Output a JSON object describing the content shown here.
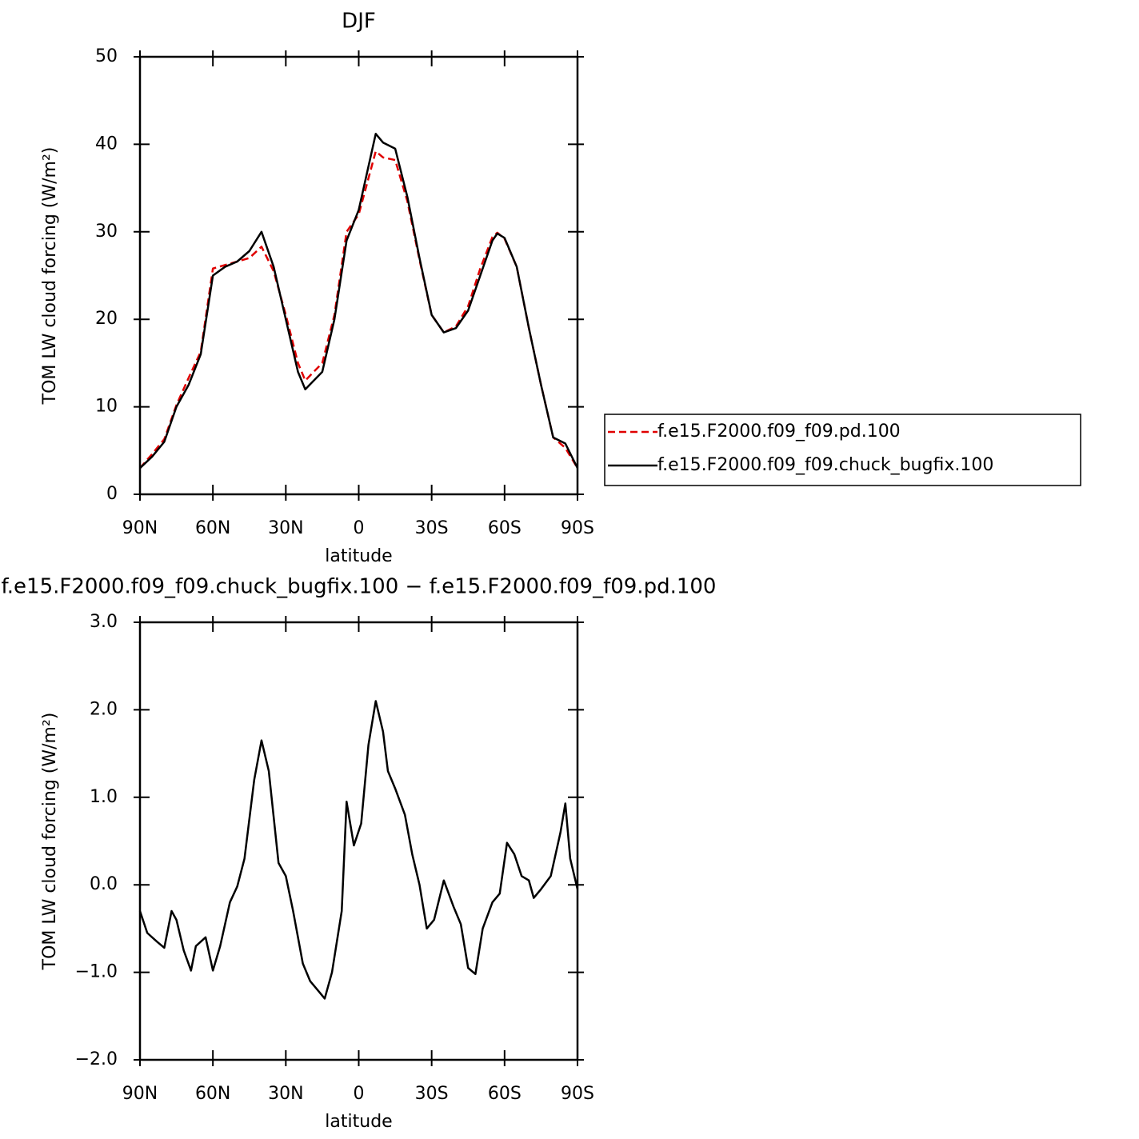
{
  "chart_data": [
    {
      "type": "line",
      "title": "DJF",
      "xlabel": "latitude",
      "ylabel": "TOM LW cloud forcing (W/m²)",
      "x": [
        90,
        85,
        80,
        75,
        70,
        65,
        60,
        55,
        50,
        45,
        40,
        35,
        30,
        25,
        22,
        15,
        10,
        5,
        0,
        -7,
        -10,
        -15,
        -20,
        -25,
        -30,
        -35,
        -40,
        -45,
        -50,
        -55,
        -57,
        -60,
        -65,
        -70,
        -75,
        -80,
        -85,
        -90
      ],
      "series": [
        {
          "name": "f.e15.F2000.f09_f09.pd.100",
          "color": "#e00000",
          "linestyle": "dashed",
          "values": [
            3.0,
            4.6,
            6.3,
            10.2,
            13.3,
            16.3,
            25.8,
            26.2,
            26.6,
            27.0,
            28.3,
            25.5,
            20.5,
            15.0,
            13.0,
            15.0,
            20.5,
            30.0,
            32.0,
            39.2,
            38.5,
            38.2,
            33.5,
            26.8,
            20.5,
            18.5,
            19.2,
            21.5,
            25.8,
            29.4,
            29.9,
            29.2,
            26.0,
            19.0,
            12.5,
            6.5,
            5.3,
            3.0
          ]
        },
        {
          "name": "f.e15.F2000.f09_f09.chuck_bugfix.100",
          "color": "#000000",
          "linestyle": "solid",
          "values": [
            3.0,
            4.3,
            6.0,
            10.0,
            12.5,
            16.0,
            25.0,
            26.0,
            26.6,
            27.8,
            30.0,
            26.0,
            20.0,
            14.0,
            12.0,
            14.0,
            20.0,
            29.0,
            32.5,
            41.2,
            40.2,
            39.5,
            34.0,
            27.0,
            20.5,
            18.5,
            19.0,
            21.0,
            25.0,
            29.0,
            29.8,
            29.3,
            26.0,
            19.0,
            12.5,
            6.5,
            5.8,
            3.0
          ]
        }
      ],
      "legend": "outside-right",
      "xlim": [
        90,
        -90
      ],
      "ylim": [
        0,
        50
      ],
      "xticks": [
        {
          "value": 90,
          "label": "90N"
        },
        {
          "value": 60,
          "label": "60N"
        },
        {
          "value": 30,
          "label": "30N"
        },
        0,
        {
          "value": -30,
          "label": "30S"
        },
        {
          "value": -60,
          "label": "60S"
        },
        {
          "value": -90,
          "label": "90S"
        }
      ],
      "yticks": [
        0,
        10,
        20,
        30,
        40,
        50
      ]
    },
    {
      "type": "line",
      "title": "f.e15.F2000.f09_f09.chuck_bugfix.100 − f.e15.F2000.f09_f09.pd.100",
      "xlabel": "latitude",
      "ylabel": "TOM LW cloud forcing (W/m²)",
      "x": [
        90,
        87,
        83,
        80,
        77,
        75,
        72,
        69,
        67,
        63,
        60,
        57,
        53,
        50,
        47,
        43,
        40,
        37,
        33,
        30,
        27,
        23,
        20,
        17,
        14,
        11,
        7,
        5,
        2,
        -1,
        -4,
        -7,
        -10,
        -12,
        -15,
        -19,
        -22,
        -25,
        -28,
        -31,
        -35,
        -39,
        -42,
        -45,
        -48,
        -51,
        -55,
        -58,
        -61,
        -64,
        -67,
        -70,
        -72,
        -75,
        -79,
        -83,
        -85,
        -87,
        -90
      ],
      "series": [
        {
          "color": "#000000",
          "linestyle": "solid",
          "values": [
            -0.3,
            -0.55,
            -0.65,
            -0.72,
            -0.3,
            -0.4,
            -0.75,
            -0.98,
            -0.7,
            -0.6,
            -0.98,
            -0.7,
            -0.2,
            -0.02,
            0.3,
            1.2,
            1.65,
            1.3,
            0.25,
            0.1,
            -0.3,
            -0.9,
            -1.1,
            -1.2,
            -1.3,
            -1.0,
            -0.3,
            0.95,
            0.45,
            0.7,
            1.6,
            2.1,
            1.75,
            1.3,
            1.1,
            0.8,
            0.35,
            0.0,
            -0.5,
            -0.4,
            0.05,
            -0.25,
            -0.45,
            -0.95,
            -1.02,
            -0.5,
            -0.2,
            -0.1,
            0.48,
            0.35,
            0.1,
            0.05,
            -0.15,
            -0.05,
            0.1,
            0.6,
            0.93,
            0.3,
            -0.05
          ]
        }
      ],
      "xlim": [
        90,
        -90
      ],
      "ylim": [
        -2,
        3
      ],
      "xticks": [
        {
          "value": 90,
          "label": "90N"
        },
        {
          "value": 60,
          "label": "60N"
        },
        {
          "value": 30,
          "label": "30N"
        },
        0,
        {
          "value": -30,
          "label": "30S"
        },
        {
          "value": -60,
          "label": "60S"
        },
        {
          "value": -90,
          "label": "90S"
        }
      ],
      "yticks": [
        {
          "value": -2,
          "label": "−2.0"
        },
        {
          "value": -1,
          "label": "−1.0"
        },
        {
          "value": 0,
          "label": "0.0"
        },
        {
          "value": 1,
          "label": "1.0"
        },
        {
          "value": 2,
          "label": "2.0"
        },
        {
          "value": 3,
          "label": "3.0"
        }
      ]
    }
  ]
}
